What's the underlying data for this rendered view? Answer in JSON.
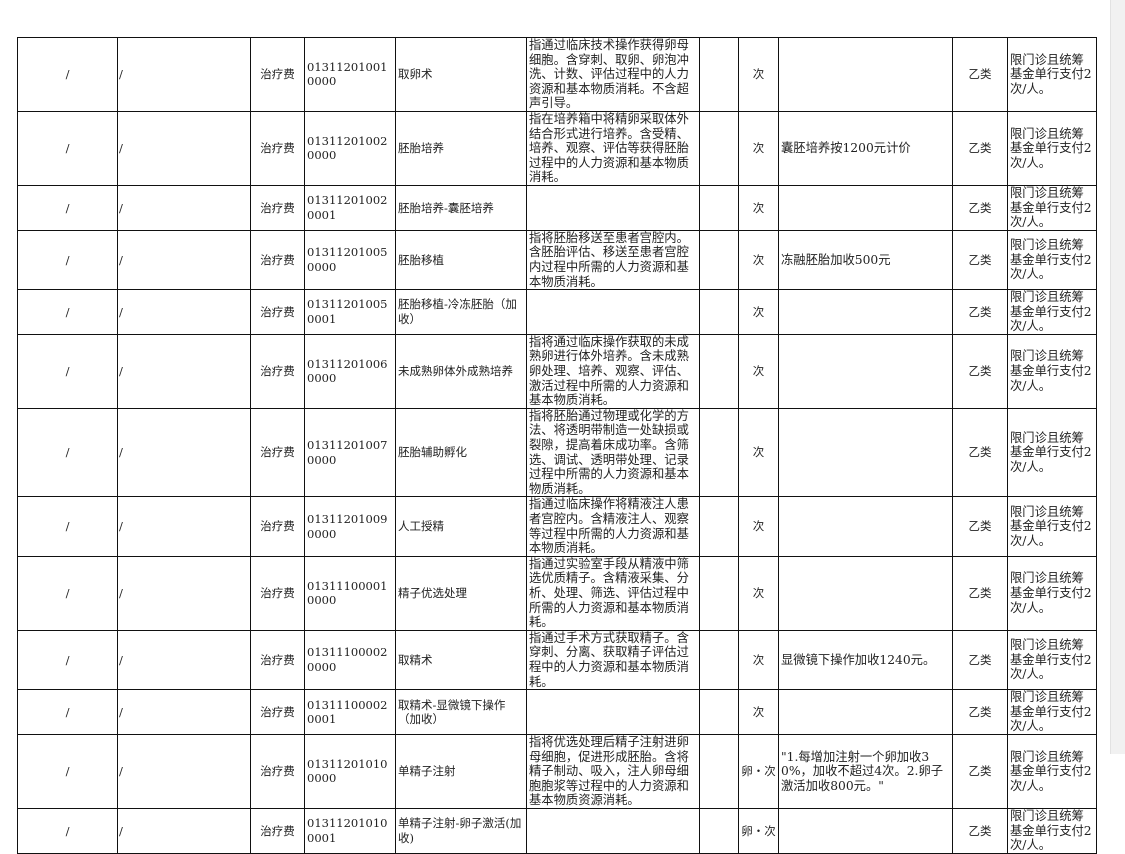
{
  "rows": [
    {
      "a": "/",
      "b": "/",
      "type": "治疗费",
      "code": "013112010010000",
      "name": "取卵术",
      "desc": "指通过临床技术操作获得卵母细胞。含穿刺、取卵、卵泡冲洗、计数、评估过程中的人力资源和基本物质消耗。不含超声引导。",
      "unit": "次",
      "note": "",
      "cls": "乙类",
      "limit": "限门诊且统筹基金单行支付2次/人。"
    },
    {
      "a": "/",
      "b": "/",
      "type": "治疗费",
      "code": "013112010020000",
      "name": "胚胎培养",
      "desc": "指在培养箱中将精卵采取体外结合形式进行培养。含受精、培养、观察、评估等获得胚胎过程中的人力资源和基本物质消耗。",
      "unit": "次",
      "note": "囊胚培养按1200元计价",
      "cls": "乙类",
      "limit": "限门诊且统筹基金单行支付2次/人。"
    },
    {
      "a": "/",
      "b": "/",
      "type": "治疗费",
      "code": "013112010020001",
      "name": "胚胎培养-囊胚培养",
      "desc": "",
      "unit": "次",
      "note": "",
      "cls": "乙类",
      "limit": "限门诊且统筹基金单行支付2次/人。"
    },
    {
      "a": "/",
      "b": "/",
      "type": "治疗费",
      "code": "013112010050000",
      "name": "胚胎移植",
      "desc": "指将胚胎移送至患者宫腔内。含胚胎评估、移送至患者宫腔内过程中所需的人力资源和基本物质消耗。",
      "unit": "次",
      "note": "冻融胚胎加收500元",
      "cls": "乙类",
      "limit": "限门诊且统筹基金单行支付2次/人。"
    },
    {
      "a": "/",
      "b": "/",
      "type": "治疗费",
      "code": "013112010050001",
      "name": "胚胎移植-冷冻胚胎（加收）",
      "desc": "",
      "unit": "次",
      "note": "",
      "cls": "乙类",
      "limit": "限门诊且统筹基金单行支付2次/人。"
    },
    {
      "a": "/",
      "b": "/",
      "type": "治疗费",
      "code": "013112010060000",
      "name": "未成熟卵体外成熟培养",
      "desc": "指将通过临床操作获取的未成熟卵进行体外培养。含未成熟卵处理、培养、观察、评估、激活过程中所需的人力资源和基本物质消耗。",
      "unit": "次",
      "note": "",
      "cls": "乙类",
      "limit": "限门诊且统筹基金单行支付2次/人。"
    },
    {
      "a": "/",
      "b": "/",
      "type": "治疗费",
      "code": "013112010070000",
      "name": "胚胎辅助孵化",
      "desc": "指将胚胎通过物理或化学的方法、将透明带制造一处缺损或裂隙，提高着床成功率。含筛选、调试、透明带处理、记录过程中所需的人力资源和基本物质消耗。",
      "unit": "次",
      "note": "",
      "cls": "乙类",
      "limit": "限门诊且统筹基金单行支付2次/人。"
    },
    {
      "a": "/",
      "b": "/",
      "type": "治疗费",
      "code": "013112010090000",
      "name": "人工授精",
      "desc": "指通过临床操作将精液注人患者宫腔内。含精液注人、观察等过程中所需的人力资源和基本物质消耗。",
      "unit": "次",
      "note": "",
      "cls": "乙类",
      "limit": "限门诊且统筹基金单行支付2次/人。"
    },
    {
      "a": "/",
      "b": "/",
      "type": "治疗费",
      "code": "013111000010000",
      "name": "精子优选处理",
      "desc": "指通过实验室手段从精液中筛选优质精子。含精液采集、分析、处理、筛选、评估过程中所需的人力资源和基本物质消耗。",
      "unit": "次",
      "note": "",
      "cls": "乙类",
      "limit": "限门诊且统筹基金单行支付2次/人。"
    },
    {
      "a": "/",
      "b": "/",
      "type": "治疗费",
      "code": "013111000020000",
      "name": "取精术",
      "desc": "指通过手术方式获取精子。含穿刺、分离、获取精子评估过程中的人力资源和基本物质消耗。",
      "unit": "次",
      "note": "显微镜下操作加收1240元。",
      "cls": "乙类",
      "limit": "限门诊且统筹基金单行支付2次/人。"
    },
    {
      "a": "/",
      "b": "/",
      "type": "治疗费",
      "code": "013111000020001",
      "name": "取精术-显微镜下操作（加收）",
      "desc": "",
      "unit": "次",
      "note": "",
      "cls": "乙类",
      "limit": "限门诊且统筹基金单行支付2次/人。"
    },
    {
      "a": "/",
      "b": "/",
      "type": "治疗费",
      "code": "013112010100000",
      "name": "单精子注射",
      "desc": "指将优选处理后精子注射进卵母细胞，促进形成胚胎。含将精子制动、吸入，注人卵母细胞胞浆等过程中的人力资源和基本物质资源消耗。",
      "unit": "卵・次",
      "note": "\"1.每增加注射一个卵加收30%，加收不超过4次。2.卵子激活加收800元。\"",
      "cls": "乙类",
      "limit": "限门诊且统筹基金单行支付2次/人。"
    },
    {
      "a": "/",
      "b": "/",
      "type": "治疗费",
      "code": "013112010100001",
      "name": "单精子注射-卵子激活(加收)",
      "desc": "",
      "unit": "卵・次",
      "note": "",
      "cls": "乙类",
      "limit": "限门诊且统筹基金单行支付2次/人。"
    }
  ]
}
